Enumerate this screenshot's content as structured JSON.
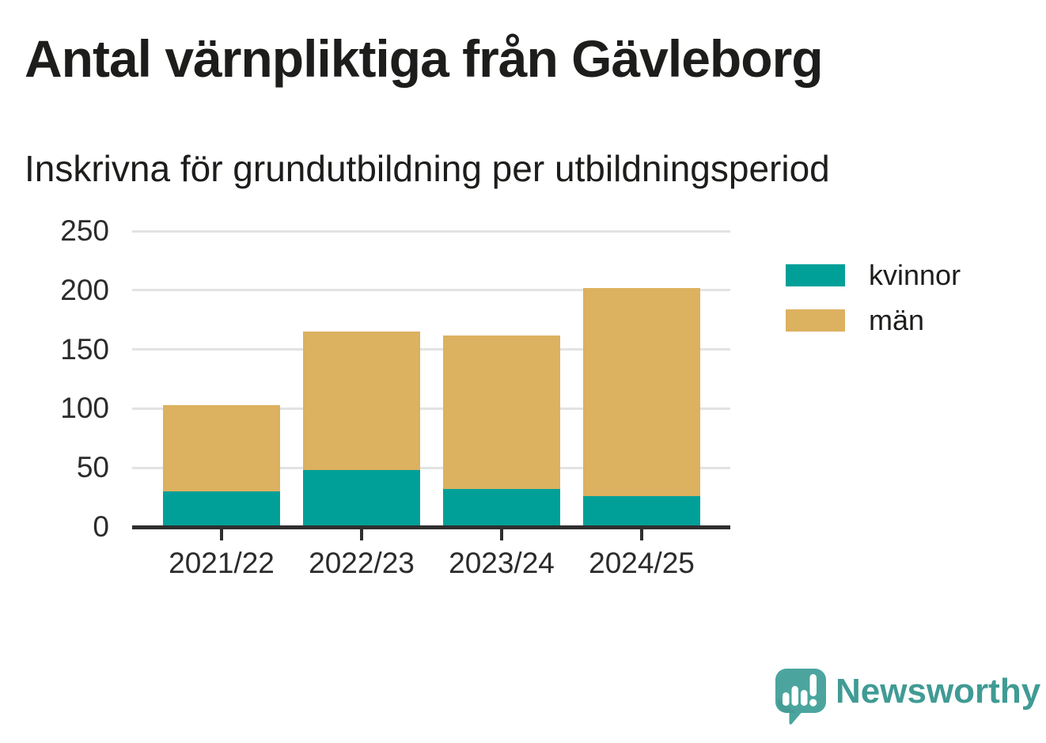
{
  "title": "Antal värnpliktiga från Gävleborg",
  "subtitle": "Inskrivna för grundutbildning per utbildningsperiod",
  "chart_data": {
    "type": "bar",
    "stacked": true,
    "categories": [
      "2021/22",
      "2022/23",
      "2023/24",
      "2024/25"
    ],
    "series": [
      {
        "name": "kvinnor",
        "color": "#00a098",
        "values": [
          30,
          48,
          32,
          26
        ]
      },
      {
        "name": "män",
        "color": "#dcb15f",
        "values": [
          73,
          117,
          130,
          176
        ]
      }
    ],
    "stack_totals": [
      103,
      165,
      162,
      202
    ],
    "yticks": [
      0,
      50,
      100,
      150,
      200,
      250
    ],
    "ylim": [
      0,
      250
    ],
    "xlabel": "",
    "ylabel": "",
    "grid": true,
    "legend_position": "right-top"
  },
  "legend": {
    "items": [
      {
        "label": "kvinnor",
        "color": "#00a098"
      },
      {
        "label": "män",
        "color": "#dcb15f"
      }
    ]
  },
  "branding": {
    "name": "Newsworthy",
    "color": "#409b94",
    "icon": "newsworthy-speech-bubble-bar-chart-icon"
  },
  "colors": {
    "bar_kvinnor": "#00a098",
    "bar_man": "#dcb15f",
    "gridline": "#e3e3e3",
    "axis": "#2f2f2f",
    "text": "#1d1d1b"
  }
}
